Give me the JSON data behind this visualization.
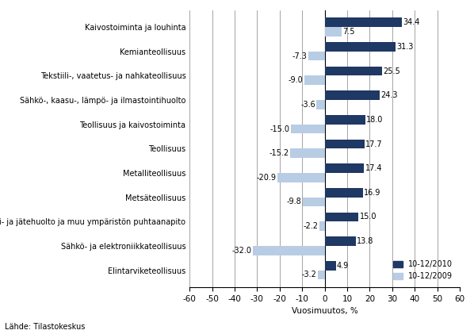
{
  "categories": [
    "Elintarviketeollisuus",
    "Sähkö- ja elektroniikkateollisuus",
    "Vesi- ja jätehuolto ja muu ympäristön puhtaanapito",
    "Metsäteollisuus",
    "Metalliteollisuus",
    "Teollisuus",
    "Teollisuus ja kaivostoiminta",
    "Sähkö-, kaasu-, lämpö- ja ilmastointihuolto",
    "Tekstiili-, vaatetus- ja nahkateollisuus",
    "Kemianteollisuus",
    "Kaivostoiminta ja louhinta"
  ],
  "values_2010": [
    4.9,
    13.8,
    15.0,
    16.9,
    17.4,
    17.7,
    18.0,
    24.3,
    25.5,
    31.3,
    34.4
  ],
  "values_2009": [
    -3.2,
    -32.0,
    -2.2,
    -9.8,
    -20.9,
    -15.2,
    -15.0,
    -3.6,
    -9.0,
    -7.3,
    7.5
  ],
  "color_2010": "#1F3864",
  "color_2009": "#B8CCE4",
  "xlim": [
    -60,
    60
  ],
  "xticks": [
    -60,
    -50,
    -40,
    -30,
    -20,
    -10,
    0,
    10,
    20,
    30,
    40,
    50,
    60
  ],
  "xlabel": "Vuosimuutos, %",
  "legend_2010": "10-12/2010",
  "legend_2009": "10-12/2009",
  "source": "Lähde: Tilastokeskus",
  "label_fontsize": 7.0,
  "tick_fontsize": 7.5,
  "bar_height": 0.38
}
